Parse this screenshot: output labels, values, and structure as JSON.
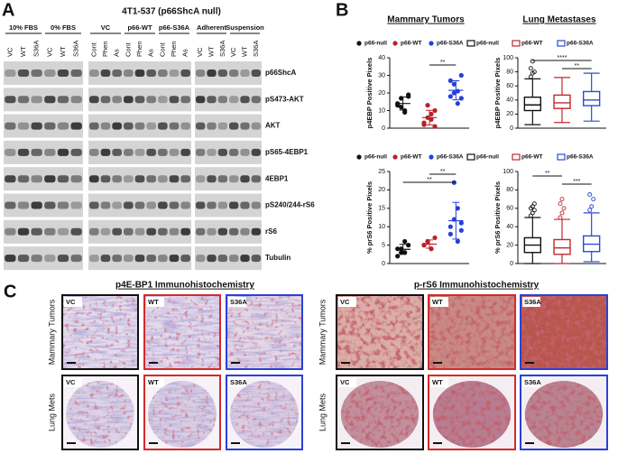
{
  "panels": {
    "a": "A",
    "b": "B",
    "c": "C"
  },
  "blot": {
    "title": "4T1-537 (p66ShcA null)",
    "groups": [
      {
        "name": "10% FBS",
        "lanes": [
          "VC",
          "WT",
          "S36A"
        ]
      },
      {
        "name": "0% FBS",
        "lanes": [
          "VC",
          "WT",
          "S36A"
        ]
      },
      {
        "name": "VC",
        "lanes": [
          "Cont",
          "Phen",
          "As"
        ]
      },
      {
        "name": "p66-WT",
        "lanes": [
          "Cont",
          "Phen",
          "As"
        ]
      },
      {
        "name": "p66-S36A",
        "lanes": [
          "Cont",
          "Phen",
          "As"
        ]
      },
      {
        "name": "Adherent",
        "lanes": [
          "VC",
          "WT",
          "S36A"
        ]
      },
      {
        "name": "Suspension",
        "lanes": [
          "VC",
          "WT",
          "S36A"
        ]
      }
    ],
    "proteins": [
      "p66ShcA",
      "pS473-AKT",
      "AKT",
      "pS65-4EBP1",
      "4EBP1",
      "pS240/244-rS6",
      "rS6",
      "Tubulin"
    ]
  },
  "section_titles": [
    "Mammary Tumors",
    "Lung Metastases"
  ],
  "chart_data": [
    {
      "type": "strip",
      "ylabel": "p4EBP Positive Pixels",
      "ylim": [
        0,
        40
      ],
      "yticks": [
        0,
        10,
        20,
        30,
        40
      ],
      "annotations": [
        "**"
      ],
      "series": [
        {
          "name": "p66-null",
          "color": "#111111",
          "values": [
            13,
            17,
            10,
            18,
            14,
            12,
            9,
            19
          ]
        },
        {
          "name": "p66-WT",
          "color": "#b8202a",
          "values": [
            2,
            6,
            8,
            1,
            3,
            13,
            5,
            10
          ]
        },
        {
          "name": "p66-S36A",
          "color": "#2540d8",
          "values": [
            27,
            20,
            14,
            30,
            18,
            25,
            21,
            17
          ]
        }
      ]
    },
    {
      "type": "box",
      "ylabel": "p4EBP Positive Pixels",
      "ylim": [
        0,
        100
      ],
      "yticks": [
        0,
        20,
        40,
        60,
        80,
        100
      ],
      "annotations": [
        "****",
        "**"
      ],
      "series": [
        {
          "name": "p66-null",
          "color": "#111111",
          "min": 5,
          "q1": 25,
          "median": 33,
          "q3": 44,
          "max": 70,
          "outliers": [
            73,
            78,
            80,
            85,
            95
          ]
        },
        {
          "name": "p66-WT",
          "color": "#c0282d",
          "min": 8,
          "q1": 28,
          "median": 36,
          "q3": 47,
          "max": 72,
          "outliers": []
        },
        {
          "name": "p66-S36A",
          "color": "#2a4bd7",
          "min": 10,
          "q1": 32,
          "median": 40,
          "q3": 52,
          "max": 78,
          "outliers": []
        }
      ]
    },
    {
      "type": "strip",
      "ylabel": "% prS6 Positive Pixels",
      "ylim": [
        0,
        25
      ],
      "yticks": [
        0,
        5,
        10,
        15,
        20,
        25
      ],
      "annotations": [
        "**",
        "**"
      ],
      "series": [
        {
          "name": "p66-null",
          "color": "#111111",
          "values": [
            4,
            3,
            6,
            5,
            2,
            4,
            3
          ]
        },
        {
          "name": "p66-WT",
          "color": "#b8202a",
          "values": [
            5,
            6,
            4,
            7,
            5,
            6,
            4
          ]
        },
        {
          "name": "p66-S36A",
          "color": "#2540d8",
          "values": [
            8,
            12,
            15,
            11,
            10,
            22,
            6,
            9
          ]
        }
      ]
    },
    {
      "type": "box",
      "ylabel": "% prS6 Positive Pixels",
      "ylim": [
        0,
        100
      ],
      "yticks": [
        0,
        20,
        40,
        60,
        80,
        100
      ],
      "annotations": [
        "**",
        "***"
      ],
      "series": [
        {
          "name": "p66-null",
          "color": "#111111",
          "min": 0,
          "q1": 12,
          "median": 20,
          "q3": 28,
          "max": 50,
          "outliers": [
            52,
            55,
            58,
            60,
            62,
            65
          ]
        },
        {
          "name": "p66-WT",
          "color": "#c0282d",
          "min": 0,
          "q1": 10,
          "median": 17,
          "q3": 26,
          "max": 48,
          "outliers": [
            50,
            55,
            60,
            65,
            70
          ]
        },
        {
          "name": "p66-S36A",
          "color": "#2a4bd7",
          "min": 2,
          "q1": 13,
          "median": 21,
          "q3": 30,
          "max": 55,
          "outliers": [
            58,
            62,
            70,
            75
          ]
        }
      ]
    }
  ],
  "ihc": {
    "titles": [
      "p4E-BP1 Immunohistochemistry",
      "p-rS6 Immunohistochemistry"
    ],
    "rows": [
      "Mammary Tumors",
      "Lung Mets"
    ],
    "tiles": [
      "VC",
      "WT",
      "S36A"
    ]
  }
}
